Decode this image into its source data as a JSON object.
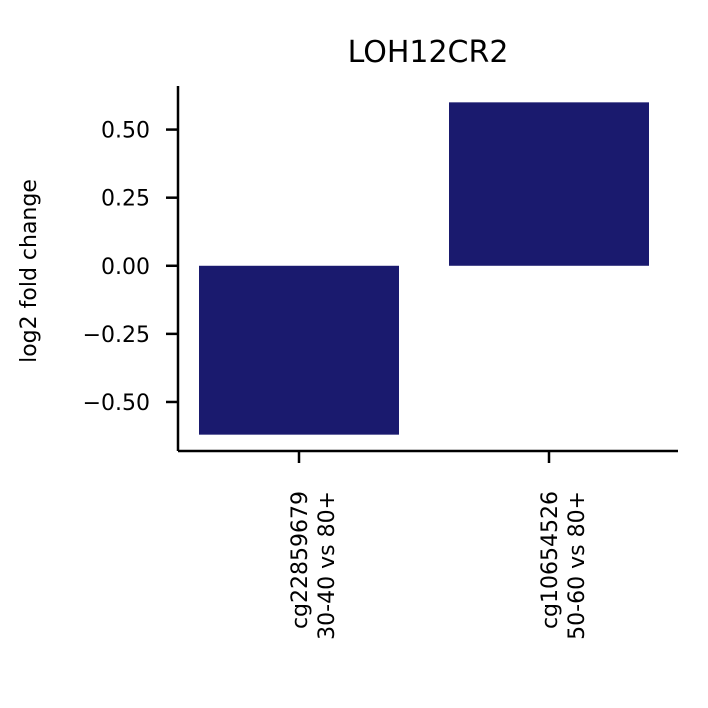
{
  "chart_data": {
    "type": "bar",
    "title": "LOH12CR2",
    "xlabel": "",
    "ylabel": "log2 fold change",
    "categories": [
      [
        "cg22859679",
        "30-40 vs 80+"
      ],
      [
        "cg10654526",
        "50-60 vs 80+"
      ]
    ],
    "values": [
      -0.62,
      0.6
    ],
    "ylim": [
      -0.68,
      0.66
    ],
    "yticks": [
      0.5,
      0.25,
      0.0,
      -0.25,
      -0.5
    ],
    "ytick_labels": [
      "0.50",
      "0.25",
      "0.00",
      "−0.25",
      "−0.50"
    ],
    "bar_color": "#1a1a6e",
    "grid": false,
    "legend": "none"
  }
}
